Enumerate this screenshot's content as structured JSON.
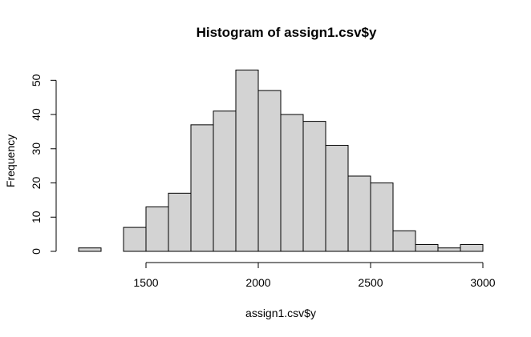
{
  "chart_data": {
    "type": "histogram",
    "title": "Histogram of assign1.csv$y",
    "xlabel": "assign1.csv$y",
    "ylabel": "Frequency",
    "bins": [
      {
        "from": 1200,
        "to": 1300,
        "count": 1
      },
      {
        "from": 1300,
        "to": 1400,
        "count": 0
      },
      {
        "from": 1400,
        "to": 1500,
        "count": 7
      },
      {
        "from": 1500,
        "to": 1600,
        "count": 13
      },
      {
        "from": 1600,
        "to": 1700,
        "count": 17
      },
      {
        "from": 1700,
        "to": 1800,
        "count": 37
      },
      {
        "from": 1800,
        "to": 1900,
        "count": 41
      },
      {
        "from": 1900,
        "to": 2000,
        "count": 53
      },
      {
        "from": 2000,
        "to": 2100,
        "count": 47
      },
      {
        "from": 2100,
        "to": 2200,
        "count": 40
      },
      {
        "from": 2200,
        "to": 2300,
        "count": 38
      },
      {
        "from": 2300,
        "to": 2400,
        "count": 31
      },
      {
        "from": 2400,
        "to": 2500,
        "count": 22
      },
      {
        "from": 2500,
        "to": 2600,
        "count": 20
      },
      {
        "from": 2600,
        "to": 2700,
        "count": 6
      },
      {
        "from": 2700,
        "to": 2800,
        "count": 2
      },
      {
        "from": 2800,
        "to": 2900,
        "count": 1
      },
      {
        "from": 2900,
        "to": 3000,
        "count": 2
      }
    ],
    "xticks": [
      1500,
      2000,
      2500,
      3000
    ],
    "yticks": [
      0,
      10,
      20,
      30,
      40,
      50
    ],
    "xlim": [
      1200,
      3000
    ],
    "ylim": [
      0,
      53
    ],
    "bar_color": "#d3d3d3",
    "border_color": "#000000",
    "grid": false
  }
}
